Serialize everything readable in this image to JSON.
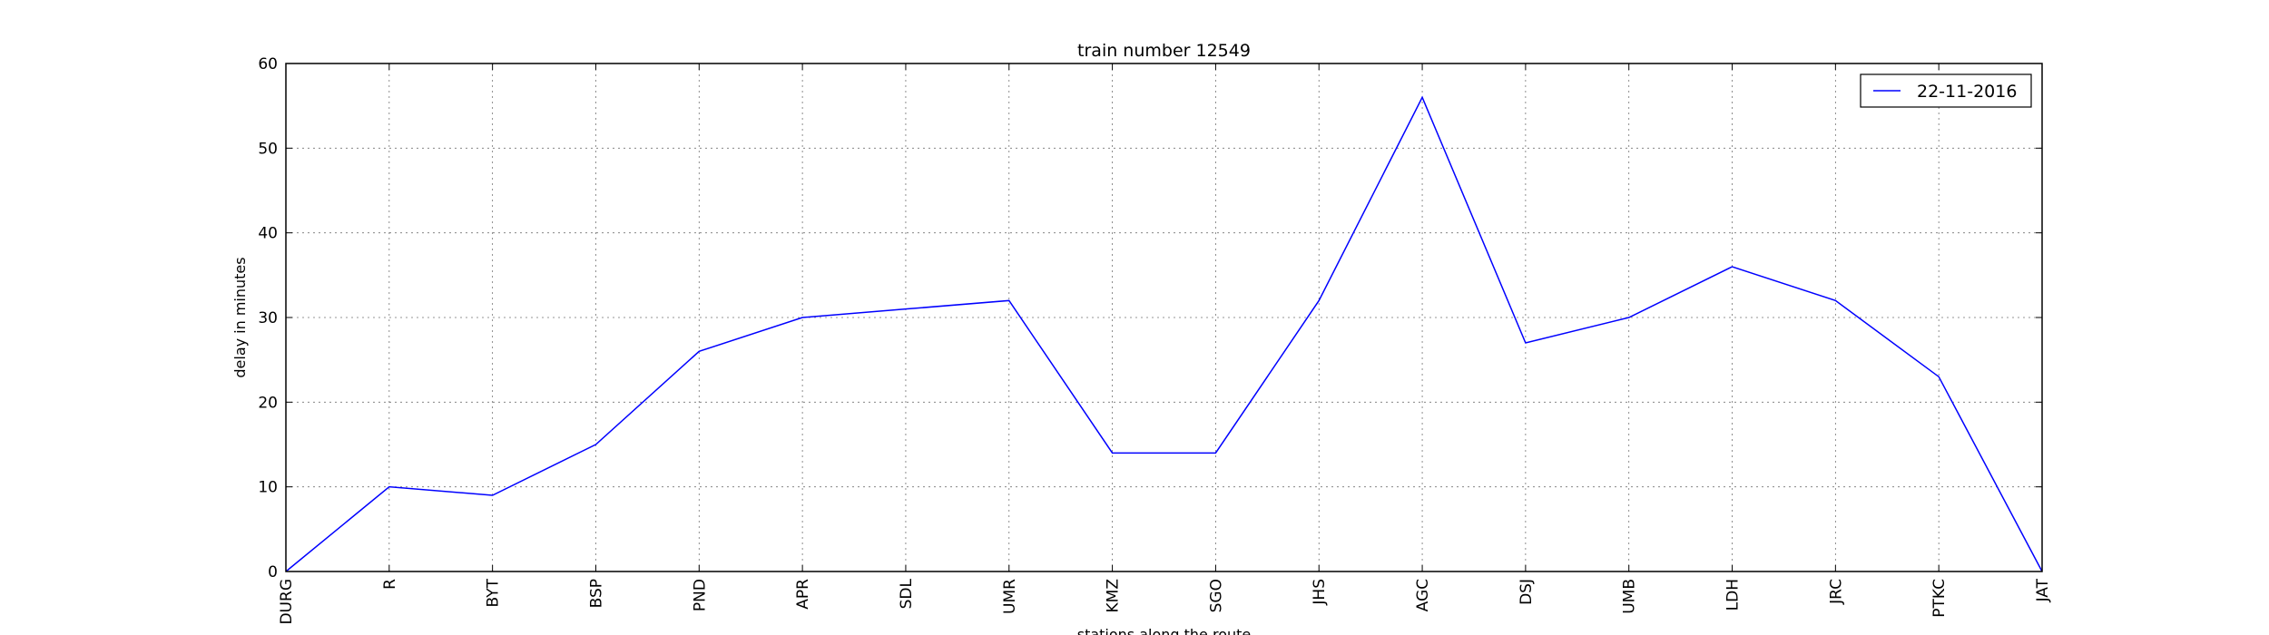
{
  "chart_data": {
    "type": "line",
    "title": "train number 12549",
    "xlabel": "stations along the route",
    "ylabel": "delay in minutes",
    "categories": [
      "DURG",
      "R",
      "BYT",
      "BSP",
      "PND",
      "APR",
      "SDL",
      "UMR",
      "KMZ",
      "SGO",
      "JHS",
      "AGC",
      "DSJ",
      "UMB",
      "LDH",
      "JRC",
      "PTKC",
      "JAT"
    ],
    "series": [
      {
        "name": "22-11-2016",
        "color": "#0000ff",
        "values": [
          0,
          10,
          9,
          15,
          26,
          30,
          31,
          32,
          14,
          14,
          32,
          56,
          27,
          30,
          36,
          32,
          23,
          0
        ]
      }
    ],
    "ylim": [
      0,
      60
    ],
    "yticks": [
      0,
      10,
      20,
      30,
      40,
      50,
      60
    ],
    "grid": true,
    "legend_position": "top-right"
  }
}
